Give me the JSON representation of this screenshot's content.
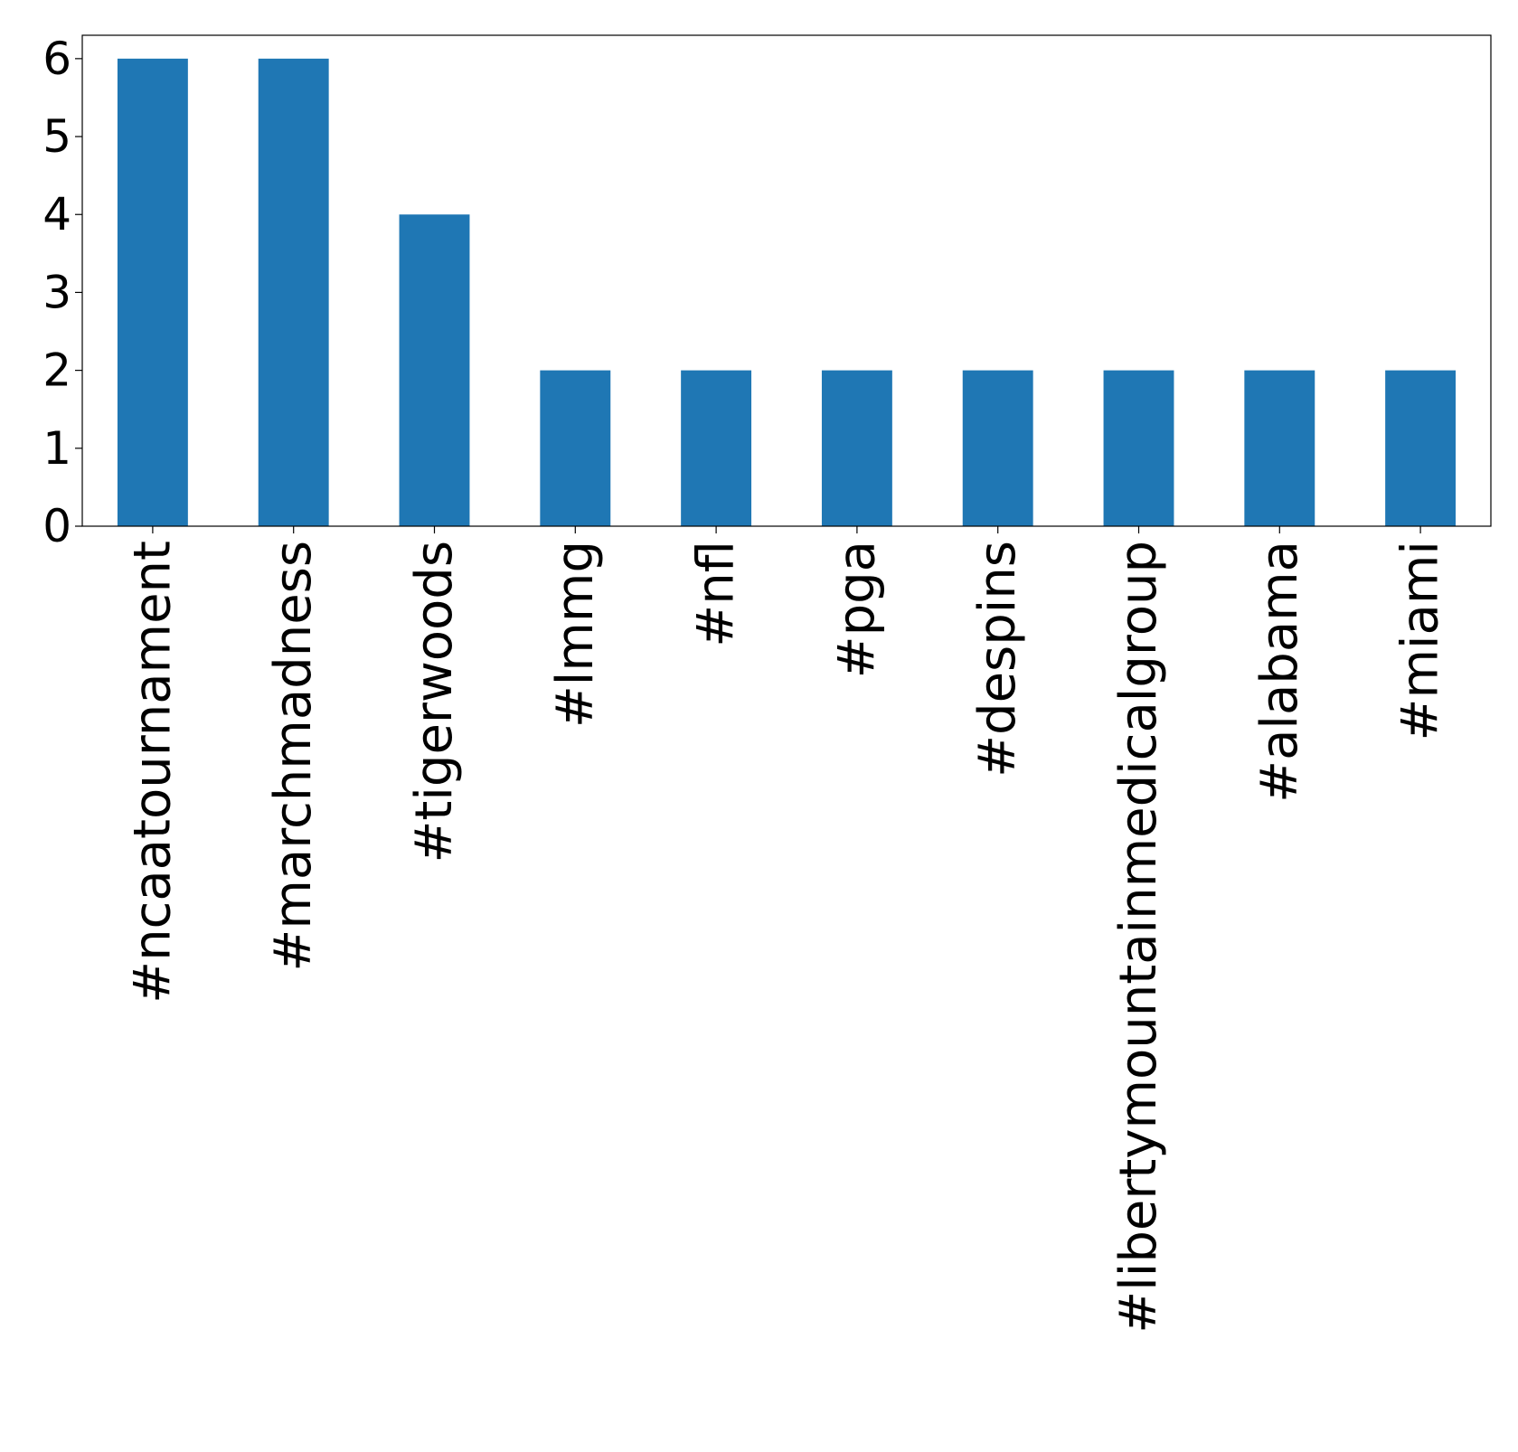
{
  "chart_data": {
    "type": "bar",
    "categories": [
      "#ncaatournament",
      "#marchmadness",
      "#tigerwoods",
      "#lmmg",
      "#nfl",
      "#pga",
      "#despins",
      "#libertymountainmedicalgroup",
      "#alabama",
      "#miami"
    ],
    "values": [
      6,
      6,
      4,
      2,
      2,
      2,
      2,
      2,
      2,
      2
    ],
    "ylim": [
      0,
      6.3
    ],
    "yticks": [
      0,
      1,
      2,
      3,
      4,
      5,
      6
    ],
    "bar_color": "#1f77b4",
    "grid": false,
    "legend": "none"
  }
}
